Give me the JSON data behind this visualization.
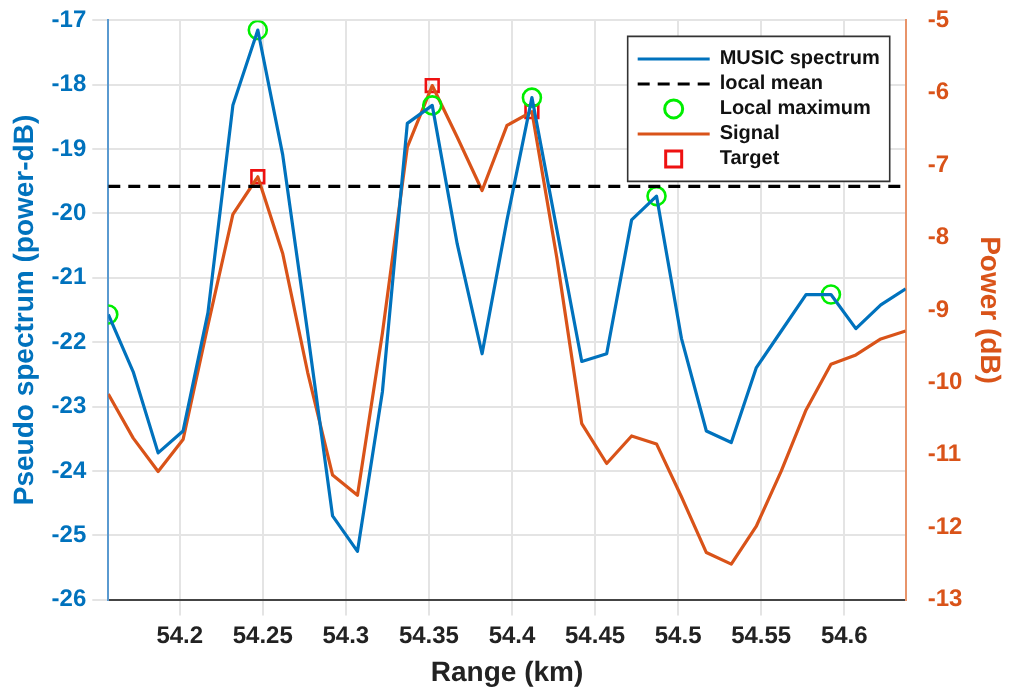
{
  "chart_data": {
    "type": "line",
    "xlabel": "Range (km)",
    "ylabel": "Pseudo spectrum (power-dB)",
    "y2label": "Power (dB)",
    "x": [
      54.157,
      54.172,
      54.187,
      54.202,
      54.217,
      54.232,
      54.247,
      54.262,
      54.277,
      54.292,
      54.307,
      54.322,
      54.337,
      54.352,
      54.367,
      54.382,
      54.397,
      54.412,
      54.427,
      54.442,
      54.457,
      54.472,
      54.487,
      54.502,
      54.517,
      54.532,
      54.547,
      54.562,
      54.577,
      54.592,
      54.607,
      54.622,
      54.637
    ],
    "series": [
      {
        "name": "MUSIC spectrum",
        "color": "#0072bd",
        "values": [
          -21.57,
          -22.46,
          -23.72,
          -23.38,
          -21.54,
          -18.32,
          -17.15,
          -19.09,
          -21.85,
          -24.7,
          -25.25,
          -22.77,
          -18.6,
          -18.32,
          -20.47,
          -22.18,
          -20.1,
          -18.2,
          -20.25,
          -22.3,
          -22.18,
          -20.1,
          -19.73,
          -21.94,
          -23.38,
          -23.56,
          -22.4,
          -21.83,
          -21.26,
          -21.26,
          -21.79,
          -21.42,
          -21.17
        ]
      },
      {
        "name": "Local maximum",
        "type": "scatter",
        "marker": "circle",
        "color": "#00ee00",
        "x": [
          54.157,
          54.247,
          54.352,
          54.412,
          54.487,
          54.592
        ],
        "values": [
          -21.57,
          -17.15,
          -18.32,
          -18.2,
          -19.73,
          -21.26
        ]
      },
      {
        "name": "Signal",
        "color": "#d95319",
        "axis": "y2",
        "values": [
          -10.16,
          -10.77,
          -11.23,
          -10.79,
          -9.21,
          -7.68,
          -7.16,
          -8.22,
          -9.86,
          -11.28,
          -11.56,
          -9.32,
          -6.75,
          -5.9,
          -6.61,
          -7.35,
          -6.45,
          -6.26,
          -8.28,
          -10.57,
          -11.12,
          -10.74,
          -10.85,
          -11.58,
          -12.35,
          -12.51,
          -11.99,
          -11.23,
          -10.38,
          -9.75,
          -9.62,
          -9.4,
          -9.29
        ]
      },
      {
        "name": "Target",
        "type": "scatter",
        "marker": "square",
        "color": "#ee1111",
        "axis": "y2",
        "x": [
          54.247,
          54.352,
          54.412
        ],
        "values": [
          -7.16,
          -5.9,
          -6.26
        ]
      }
    ],
    "ref_lines": [
      {
        "axis": "y",
        "value": -19.58,
        "label": "local mean",
        "color": "#000000",
        "line_style": "dashed"
      }
    ],
    "xlim": [
      54.157,
      54.637
    ],
    "xticks": [
      54.2,
      54.25,
      54.3,
      54.35,
      54.4,
      54.45,
      54.5,
      54.55,
      54.6
    ],
    "ylim": [
      -26,
      -17
    ],
    "yticks": [
      -26,
      -25,
      -24,
      -23,
      -22,
      -21,
      -20,
      -19,
      -18,
      -17
    ],
    "y2lim": [
      -13,
      -5
    ],
    "y2ticks": [
      -13,
      -12,
      -11,
      -10,
      -9,
      -8,
      -7,
      -6,
      -5
    ],
    "grid": true,
    "legend": "top right",
    "line_style": "solid"
  }
}
